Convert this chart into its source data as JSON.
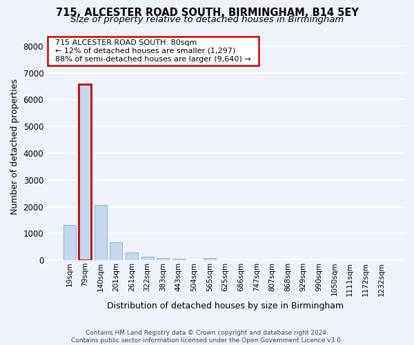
{
  "title_line1": "715, ALCESTER ROAD SOUTH, BIRMINGHAM, B14 5EY",
  "title_line2": "Size of property relative to detached houses in Birmingham",
  "xlabel": "Distribution of detached houses by size in Birmingham",
  "ylabel": "Number of detached properties",
  "footnote": "Contains HM Land Registry data © Crown copyright and database right 2024.\nContains public sector information licensed under the Open Government Licence v3.0.",
  "bar_labels": [
    "19sqm",
    "79sqm",
    "140sqm",
    "201sqm",
    "261sqm",
    "322sqm",
    "383sqm",
    "443sqm",
    "504sqm",
    "565sqm",
    "625sqm",
    "686sqm",
    "747sqm",
    "807sqm",
    "868sqm",
    "929sqm",
    "990sqm",
    "1050sqm",
    "1111sqm",
    "1172sqm",
    "1232sqm"
  ],
  "bar_values": [
    1310,
    6580,
    2060,
    680,
    290,
    130,
    75,
    50,
    0,
    80,
    0,
    0,
    0,
    0,
    0,
    0,
    0,
    0,
    0,
    0,
    0
  ],
  "bar_color": "#c5d8f0",
  "bar_edge_color": "#8cb4d8",
  "highlight_bar_index": 1,
  "highlight_edge_color": "#cc0000",
  "annotation_title": "715 ALCESTER ROAD SOUTH: 80sqm",
  "annotation_line2": "← 12% of detached houses are smaller (1,297)",
  "annotation_line3": "88% of semi-detached houses are larger (9,640) →",
  "annotation_box_color": "#ffffff",
  "annotation_edge_color": "#cc0000",
  "ylim": [
    0,
    8500
  ],
  "yticks": [
    0,
    1000,
    2000,
    3000,
    4000,
    5000,
    6000,
    7000,
    8000
  ],
  "bg_color": "#eef2fa",
  "plot_bg_color": "#eef2fa",
  "grid_color": "#ffffff",
  "title_fontsize": 10.5,
  "subtitle_fontsize": 9.5
}
